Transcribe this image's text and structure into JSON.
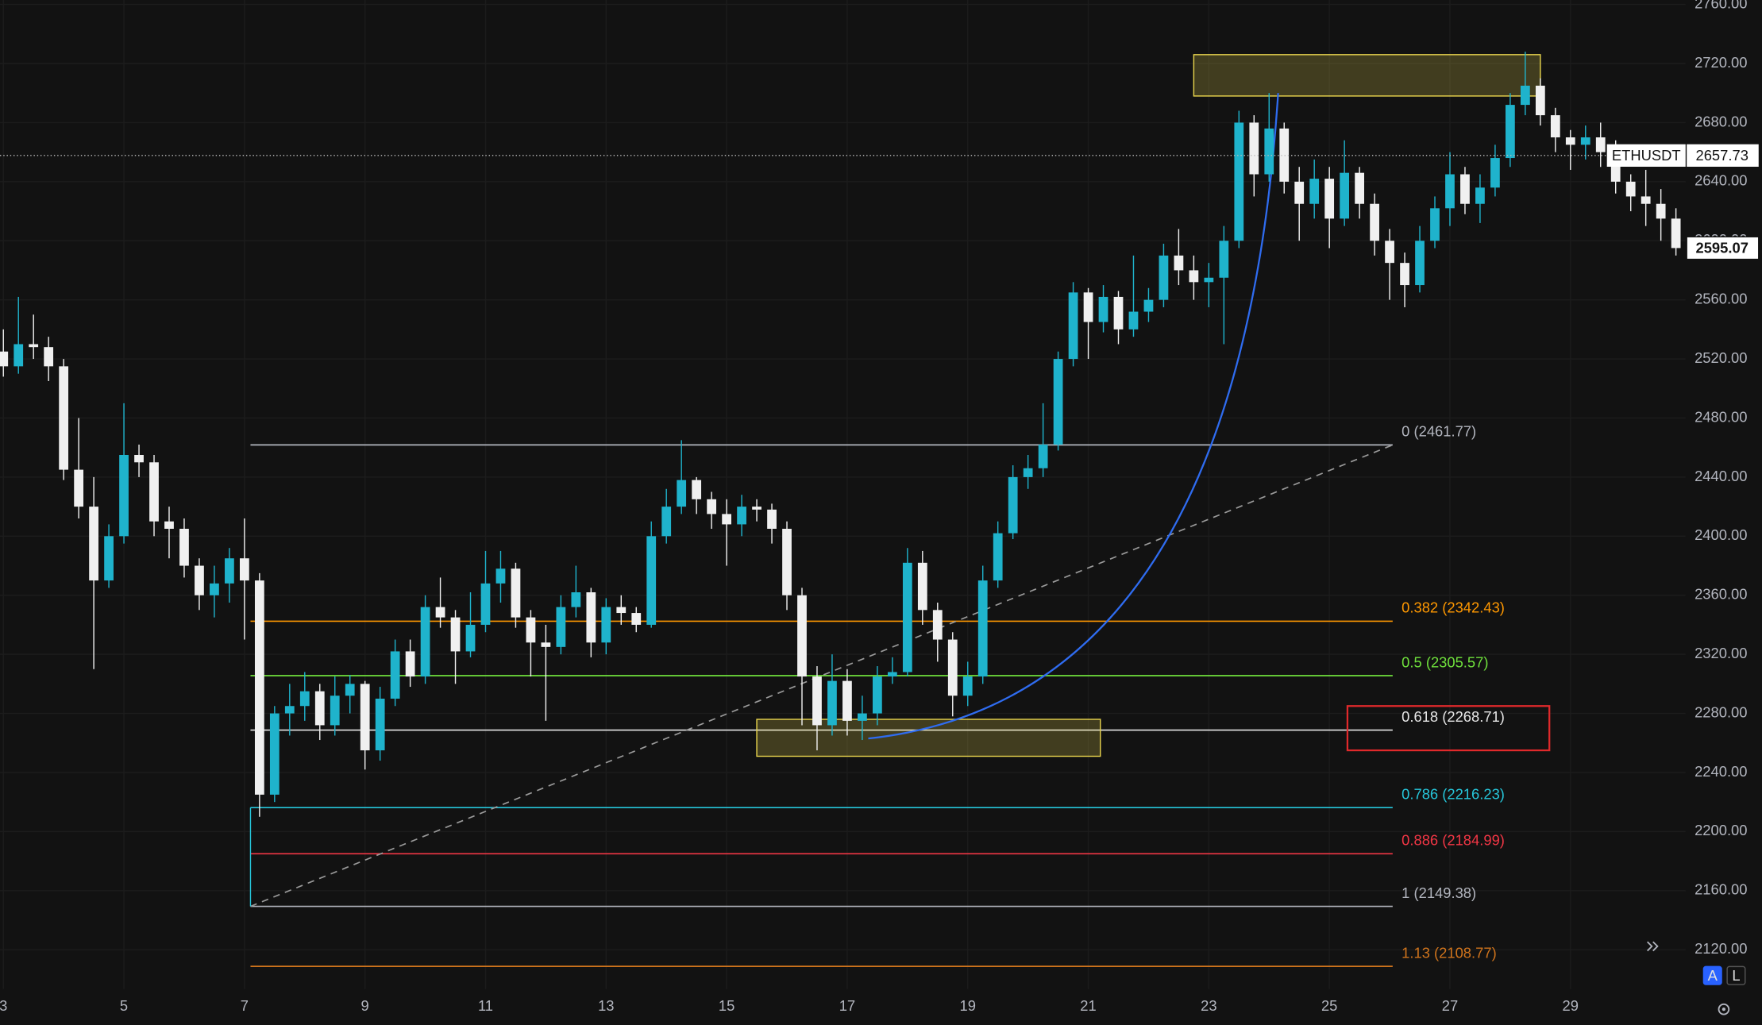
{
  "chart_data": {
    "type": "candlestick",
    "symbol": "ETHUSDT",
    "price_line": 2657.73,
    "up_color": "#1fb3cc",
    "down_color": "#f0f0f0",
    "xlim": [
      2.944,
      30.91
    ],
    "ylim": [
      2093.4,
      2763.0
    ],
    "xticks": [
      3,
      5,
      7,
      9,
      11,
      13,
      15,
      17,
      19,
      21,
      23,
      25,
      27,
      29
    ],
    "yticks": [
      {
        "value": 2120,
        "label": "2120.00"
      },
      {
        "value": 2160,
        "label": "2160.00"
      },
      {
        "value": 2200,
        "label": "2200.00"
      },
      {
        "value": 2240,
        "label": "2240.00"
      },
      {
        "value": 2280,
        "label": "2280.00"
      },
      {
        "value": 2320,
        "label": "2320.00"
      },
      {
        "value": 2360,
        "label": "2360.00"
      },
      {
        "value": 2400,
        "label": "2400.00"
      },
      {
        "value": 2440,
        "label": "2440.00"
      },
      {
        "value": 2480,
        "label": "2480.00"
      },
      {
        "value": 2520,
        "label": "2520.00"
      },
      {
        "value": 2560,
        "label": "2560.00"
      },
      {
        "value": 2600,
        "label": "2600.00"
      },
      {
        "value": 2640,
        "label": "2640.00"
      },
      {
        "value": 2680,
        "label": "2680.00"
      },
      {
        "value": 2720,
        "label": "2720.00"
      },
      {
        "value": 2760,
        "label": "2760.00"
      }
    ],
    "grid": true,
    "x": [
      3,
      3.25,
      3.5,
      3.75,
      4,
      4.25,
      4.5,
      4.75,
      5,
      5.25,
      5.5,
      5.75,
      6,
      6.25,
      6.5,
      6.75,
      7,
      7.25,
      7.5,
      7.75,
      8,
      8.25,
      8.5,
      8.75,
      9,
      9.25,
      9.5,
      9.75,
      10,
      10.25,
      10.5,
      10.75,
      11,
      11.25,
      11.5,
      11.75,
      12,
      12.25,
      12.5,
      12.75,
      13,
      13.25,
      13.5,
      13.75,
      14,
      14.25,
      14.5,
      14.75,
      15,
      15.25,
      15.5,
      15.75,
      16,
      16.25,
      16.5,
      16.75,
      17,
      17.25,
      17.5,
      17.75,
      18,
      18.25,
      18.5,
      18.75,
      19,
      19.25,
      19.5,
      19.75,
      20,
      20.25,
      20.5,
      20.75,
      21,
      21.25,
      21.5,
      21.75,
      22,
      22.25,
      22.5,
      22.75,
      23,
      23.25,
      23.5,
      23.75,
      24,
      24.25,
      24.5,
      24.75,
      25,
      25.25,
      25.5,
      25.75,
      26,
      26.25,
      26.5,
      26.75,
      27,
      27.25,
      27.5,
      27.75,
      28,
      28.25,
      28.5,
      28.75,
      29,
      29.25,
      29.5,
      29.75,
      30,
      30.25,
      30.5,
      30.75
    ],
    "ohlc": [
      [
        2525,
        2540,
        2508,
        2515
      ],
      [
        2515,
        2562,
        2510,
        2530
      ],
      [
        2530,
        2550,
        2520,
        2528
      ],
      [
        2528,
        2535,
        2505,
        2515
      ],
      [
        2515,
        2520,
        2438,
        2445
      ],
      [
        2445,
        2480,
        2412,
        2420
      ],
      [
        2420,
        2440,
        2310,
        2370
      ],
      [
        2370,
        2408,
        2365,
        2400
      ],
      [
        2400,
        2490,
        2395,
        2455
      ],
      [
        2455,
        2462,
        2440,
        2450
      ],
      [
        2450,
        2455,
        2400,
        2410
      ],
      [
        2410,
        2420,
        2385,
        2405
      ],
      [
        2405,
        2412,
        2372,
        2380
      ],
      [
        2380,
        2385,
        2350,
        2360
      ],
      [
        2360,
        2380,
        2345,
        2368
      ],
      [
        2368,
        2392,
        2355,
        2385
      ],
      [
        2385,
        2412,
        2330,
        2370
      ],
      [
        2370,
        2375,
        2210,
        2225
      ],
      [
        2225,
        2285,
        2220,
        2280
      ],
      [
        2280,
        2300,
        2265,
        2285
      ],
      [
        2285,
        2308,
        2275,
        2295
      ],
      [
        2295,
        2300,
        2262,
        2272
      ],
      [
        2272,
        2305,
        2265,
        2292
      ],
      [
        2292,
        2306,
        2280,
        2300
      ],
      [
        2300,
        2302,
        2242,
        2255
      ],
      [
        2255,
        2298,
        2248,
        2290
      ],
      [
        2290,
        2330,
        2285,
        2322
      ],
      [
        2322,
        2330,
        2298,
        2305
      ],
      [
        2305,
        2360,
        2300,
        2352
      ],
      [
        2352,
        2372,
        2338,
        2345
      ],
      [
        2345,
        2350,
        2300,
        2322
      ],
      [
        2322,
        2362,
        2318,
        2340
      ],
      [
        2340,
        2390,
        2335,
        2368
      ],
      [
        2368,
        2390,
        2355,
        2378
      ],
      [
        2378,
        2382,
        2338,
        2345
      ],
      [
        2345,
        2350,
        2305,
        2328
      ],
      [
        2328,
        2340,
        2275,
        2325
      ],
      [
        2325,
        2360,
        2320,
        2352
      ],
      [
        2352,
        2380,
        2345,
        2362
      ],
      [
        2362,
        2365,
        2318,
        2328
      ],
      [
        2328,
        2358,
        2320,
        2352
      ],
      [
        2352,
        2360,
        2340,
        2348
      ],
      [
        2348,
        2352,
        2335,
        2340
      ],
      [
        2340,
        2410,
        2338,
        2400
      ],
      [
        2400,
        2432,
        2395,
        2420
      ],
      [
        2420,
        2465,
        2415,
        2438
      ],
      [
        2438,
        2440,
        2415,
        2425
      ],
      [
        2425,
        2430,
        2405,
        2415
      ],
      [
        2415,
        2425,
        2380,
        2408
      ],
      [
        2408,
        2428,
        2400,
        2420
      ],
      [
        2420,
        2425,
        2410,
        2418
      ],
      [
        2418,
        2422,
        2395,
        2405
      ],
      [
        2405,
        2410,
        2350,
        2360
      ],
      [
        2360,
        2365,
        2272,
        2305
      ],
      [
        2305,
        2312,
        2255,
        2272
      ],
      [
        2272,
        2320,
        2265,
        2302
      ],
      [
        2302,
        2310,
        2265,
        2275
      ],
      [
        2275,
        2292,
        2262,
        2280
      ],
      [
        2280,
        2312,
        2272,
        2305
      ],
      [
        2305,
        2318,
        2300,
        2308
      ],
      [
        2308,
        2392,
        2305,
        2382
      ],
      [
        2382,
        2390,
        2340,
        2350
      ],
      [
        2350,
        2355,
        2315,
        2330
      ],
      [
        2330,
        2335,
        2278,
        2292
      ],
      [
        2292,
        2315,
        2285,
        2305
      ],
      [
        2305,
        2380,
        2300,
        2370
      ],
      [
        2370,
        2410,
        2365,
        2402
      ],
      [
        2402,
        2448,
        2398,
        2440
      ],
      [
        2440,
        2455,
        2432,
        2446
      ],
      [
        2446,
        2490,
        2440,
        2462
      ],
      [
        2462,
        2525,
        2458,
        2520
      ],
      [
        2520,
        2572,
        2515,
        2565
      ],
      [
        2565,
        2568,
        2520,
        2545
      ],
      [
        2545,
        2570,
        2538,
        2562
      ],
      [
        2562,
        2566,
        2530,
        2540
      ],
      [
        2540,
        2590,
        2535,
        2552
      ],
      [
        2552,
        2568,
        2545,
        2560
      ],
      [
        2560,
        2598,
        2555,
        2590
      ],
      [
        2590,
        2608,
        2570,
        2580
      ],
      [
        2580,
        2590,
        2560,
        2572
      ],
      [
        2572,
        2585,
        2555,
        2575
      ],
      [
        2575,
        2610,
        2530,
        2600
      ],
      [
        2600,
        2688,
        2595,
        2680
      ],
      [
        2680,
        2685,
        2630,
        2645
      ],
      [
        2645,
        2700,
        2640,
        2676
      ],
      [
        2676,
        2680,
        2632,
        2640
      ],
      [
        2640,
        2650,
        2600,
        2625
      ],
      [
        2625,
        2655,
        2615,
        2642
      ],
      [
        2642,
        2650,
        2595,
        2615
      ],
      [
        2615,
        2668,
        2610,
        2646
      ],
      [
        2646,
        2650,
        2615,
        2625
      ],
      [
        2625,
        2632,
        2590,
        2600
      ],
      [
        2600,
        2608,
        2560,
        2585
      ],
      [
        2585,
        2592,
        2555,
        2570
      ],
      [
        2570,
        2610,
        2565,
        2600
      ],
      [
        2600,
        2630,
        2595,
        2622
      ],
      [
        2622,
        2660,
        2610,
        2645
      ],
      [
        2645,
        2650,
        2618,
        2625
      ],
      [
        2625,
        2645,
        2612,
        2636
      ],
      [
        2636,
        2665,
        2630,
        2656
      ],
      [
        2656,
        2700,
        2650,
        2692
      ],
      [
        2692,
        2728,
        2685,
        2705
      ],
      [
        2705,
        2710,
        2678,
        2685
      ],
      [
        2685,
        2690,
        2660,
        2670
      ],
      [
        2670,
        2675,
        2648,
        2665
      ],
      [
        2665,
        2678,
        2655,
        2670
      ],
      [
        2670,
        2680,
        2650,
        2660
      ],
      [
        2660,
        2668,
        2632,
        2640
      ],
      [
        2640,
        2645,
        2620,
        2630
      ],
      [
        2630,
        2648,
        2610,
        2625
      ],
      [
        2625,
        2635,
        2600,
        2615
      ],
      [
        2615,
        2622,
        2590,
        2595.07
      ]
    ],
    "fib": {
      "from": [
        7.1,
        2149.38
      ],
      "to": [
        26.05,
        2461.77
      ],
      "levels": [
        {
          "label": "0 (2461.77)",
          "price": 2461.77,
          "color": "#b2b5be"
        },
        {
          "label": "0.382 (2342.43)",
          "price": 2342.43,
          "color": "#ff9800"
        },
        {
          "label": "0.5 (2305.57)",
          "price": 2305.57,
          "color": "#6fe03c"
        },
        {
          "label": "0.618 (2268.71)",
          "price": 2268.71,
          "color": "#e6e6e6"
        },
        {
          "label": "0.786 (2216.23)",
          "price": 2216.23,
          "color": "#26c6da"
        },
        {
          "label": "0.886 (2184.99)",
          "price": 2184.99,
          "color": "#f23645"
        },
        {
          "label": "1 (2149.38)",
          "price": 2149.38,
          "color": "#b2b5be"
        },
        {
          "label": "1.13 (2108.77)",
          "price": 2108.77,
          "color": "#d0741c"
        }
      ]
    },
    "boxes": [
      {
        "x": [
          22.75,
          28.5
        ],
        "y": [
          2698,
          2726
        ],
        "color": "#e8d44d"
      },
      {
        "x": [
          15.5,
          21.2
        ],
        "y": [
          2251,
          2276
        ],
        "color": "#e8d44d"
      },
      {
        "x": [
          25.3,
          28.65
        ],
        "y": [
          2255,
          2285
        ],
        "color": "#e0292b"
      }
    ],
    "curve": {
      "points": [
        [
          17.35,
          2263
        ],
        [
          23.5,
          2290
        ],
        [
          24.15,
          2700
        ]
      ],
      "color": "#2f6cf0"
    }
  },
  "ui": {
    "buttons": [
      "A",
      "L"
    ]
  }
}
